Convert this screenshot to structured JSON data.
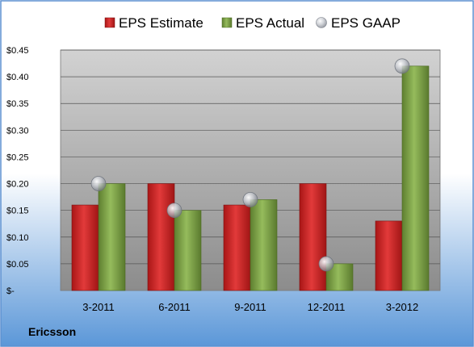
{
  "chart_data": {
    "type": "bar",
    "title": "",
    "xlabel": "",
    "ylabel": "",
    "categories": [
      "3-2011",
      "6-2011",
      "9-2011",
      "12-2011",
      "3-2012"
    ],
    "series": [
      {
        "name": "EPS Estimate",
        "kind": "bar",
        "color": "#d42a2a",
        "values": [
          0.16,
          0.2,
          0.16,
          0.2,
          0.13
        ]
      },
      {
        "name": "EPS Actual",
        "kind": "bar",
        "color": "#7fa64a",
        "values": [
          0.2,
          0.15,
          0.17,
          0.05,
          0.42
        ]
      },
      {
        "name": "EPS GAAP",
        "kind": "marker",
        "color": "#b8bcc4",
        "values": [
          0.2,
          0.15,
          0.17,
          0.05,
          0.42
        ]
      }
    ],
    "ylim": [
      0,
      0.45
    ],
    "yticks": [
      0,
      0.05,
      0.1,
      0.15,
      0.2,
      0.25,
      0.3,
      0.35,
      0.4,
      0.45
    ],
    "ytick_labels": [
      "$-",
      "$0.05",
      "$0.10",
      "$0.15",
      "$0.20",
      "$0.25",
      "$0.30",
      "$0.35",
      "$0.40",
      "$0.45"
    ],
    "grid": true,
    "legend_position": "top"
  },
  "footer": {
    "company": "Ericsson"
  },
  "colors": {
    "background_top": "#ffffff",
    "background_bottom": "#5b97d8",
    "plot_top": "#d2d2d2",
    "plot_bottom": "#8c8c8c",
    "border": "#5b8fd0"
  }
}
